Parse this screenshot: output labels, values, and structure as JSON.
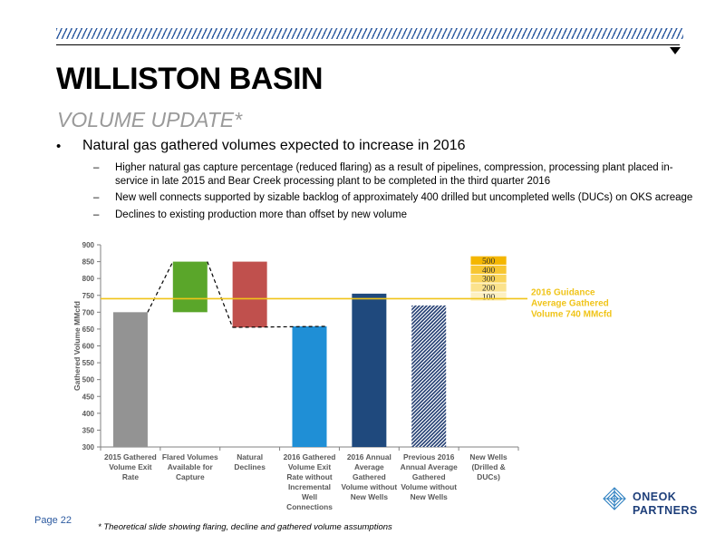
{
  "header": {
    "title": "WILLISTON BASIN",
    "subtitle": "VOLUME UPDATE*"
  },
  "bullets": {
    "main": "Natural gas gathered volumes expected to increase in 2016",
    "subs": [
      "Higher natural gas capture percentage (reduced flaring) as a result of pipelines, compression, processing plant placed in-service in late 2015 and Bear Creek processing plant to be completed in the third quarter 2016",
      "New well connects supported by sizable backlog of approximately 400 drilled but uncompleted wells (DUCs) on OKS acreage",
      "Declines to existing production more than offset by new volume"
    ]
  },
  "chart_data": {
    "type": "bar",
    "title": "",
    "xlabel": "",
    "ylabel": "Gathered Volume MMcfd",
    "ylim": [
      300,
      900
    ],
    "yticks": [
      300,
      350,
      400,
      450,
      500,
      550,
      600,
      650,
      700,
      750,
      800,
      850,
      900
    ],
    "categories": [
      "2015 Gathered Volume Exit Rate",
      "Flared Volumes Available for Capture",
      "Natural Declines",
      "2016 Gathered Volume Exit Rate without Incremental Well Connections",
      "2016 Annual Average Gathered Volume without New Wells",
      "Previous 2016 Annual Average Gathered Volume without New Wells",
      "New Wells (Drilled & DUCs)"
    ],
    "category_lines": [
      [
        "2015 Gathered",
        "Volume Exit",
        "Rate"
      ],
      [
        "Flared Volumes",
        "Available for",
        "Capture"
      ],
      [
        "Natural",
        "Declines"
      ],
      [
        "2016 Gathered",
        "Volume Exit",
        "Rate without",
        "Incremental",
        "Well",
        "Connections"
      ],
      [
        "2016 Annual",
        "Average",
        "Gathered",
        "Volume without",
        "New Wells"
      ],
      [
        "Previous 2016",
        "Annual Average",
        "Gathered",
        "Volume without",
        "New Wells"
      ],
      [
        "New Wells",
        "(Drilled &",
        "DUCs)"
      ]
    ],
    "bars": [
      {
        "low": 300,
        "high": 700,
        "color": "#939393",
        "pattern": "solid"
      },
      {
        "low": 700,
        "high": 850,
        "color": "#5aa62a",
        "pattern": "solid"
      },
      {
        "low": 655,
        "high": 850,
        "color": "#c0504d",
        "pattern": "solid"
      },
      {
        "low": 300,
        "high": 658,
        "color": "#1f8fd6",
        "pattern": "solid"
      },
      {
        "low": 300,
        "high": 755,
        "color": "#1f497d",
        "pattern": "solid"
      },
      {
        "low": 300,
        "high": 720,
        "color": "#1f3b70",
        "pattern": "hatched"
      }
    ],
    "new_wells_stack": {
      "labels": [
        "500",
        "400",
        "300",
        "200",
        "100"
      ],
      "bands": [
        {
          "low": 733,
          "high": 760,
          "color": "#fdf0c2"
        },
        {
          "low": 760,
          "high": 787,
          "color": "#fbe28c"
        },
        {
          "low": 787,
          "high": 813,
          "color": "#f9d45a"
        },
        {
          "low": 813,
          "high": 840,
          "color": "#f7c631"
        },
        {
          "low": 840,
          "high": 867,
          "color": "#f4b600"
        }
      ]
    },
    "guidance": {
      "value": 740,
      "color": "#f0c419",
      "label": [
        "2016 Guidance",
        "Average Gathered",
        "Volume 740 MMcfd"
      ]
    },
    "grid": false
  },
  "footer": {
    "page": "Page 22",
    "footnote": "* Theoretical slide showing flaring, decline and gathered volume assumptions",
    "logo_line1": "ONEOK",
    "logo_line2": "PARTNERS"
  }
}
